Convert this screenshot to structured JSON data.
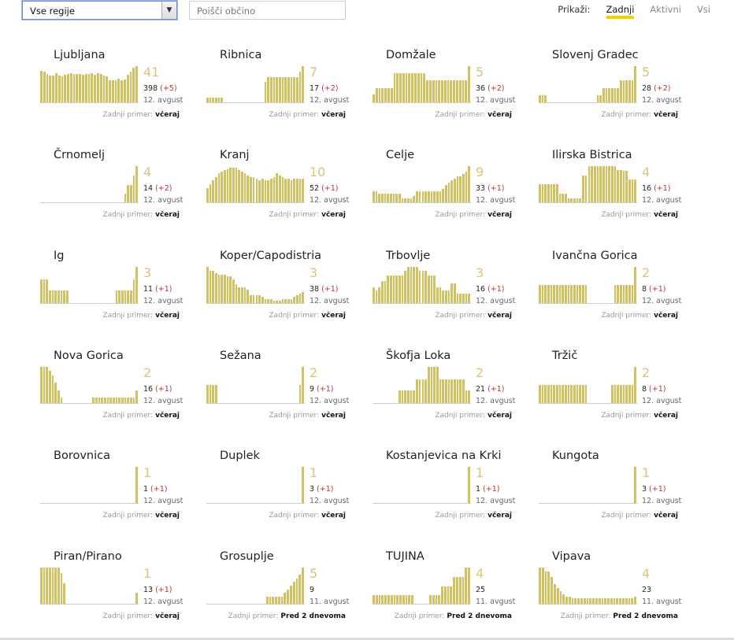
{
  "filters": {
    "region_value": "Vse regije",
    "search_placeholder": "Poišči občino",
    "show_label": "Prikaži:",
    "show_options": [
      "Zadnji",
      "Aktivni",
      "Vsi"
    ],
    "show_active": "Zadnji"
  },
  "last_label": "Zadnji primer:",
  "colors": {
    "bar": "#d3c15f",
    "accent": "#f5d000",
    "delta": "#b33333"
  },
  "municipalities": [
    {
      "name": "Ljubljana",
      "current": "41",
      "total": "398",
      "delta": "(+5)",
      "date": "12. avgust",
      "last_case": "včeraj",
      "bars": [
        0.86,
        0.84,
        0.78,
        0.74,
        0.74,
        0.8,
        0.74,
        0.72,
        0.76,
        0.78,
        0.8,
        0.78,
        0.78,
        0.78,
        0.76,
        0.78,
        0.78,
        0.8,
        0.76,
        0.8,
        0.78,
        0.74,
        0.72,
        0.6,
        0.6,
        0.62,
        0.66,
        0.62,
        0.64,
        0.76,
        0.84,
        0.96,
        1.0
      ]
    },
    {
      "name": "Ribnica",
      "current": "7",
      "total": "17",
      "delta": "(+2)",
      "date": "12. avgust",
      "last_case": "včeraj",
      "bars": [
        0.14,
        0.14,
        0.14,
        0.14,
        0.14,
        0.14,
        0,
        0,
        0,
        0,
        0,
        0,
        0,
        0,
        0,
        0,
        0,
        0,
        0,
        0,
        0.56,
        0.7,
        0.7,
        0.7,
        0.7,
        0.7,
        0.7,
        0.7,
        0.7,
        0.7,
        0.7,
        0.7,
        0.84,
        1.0
      ]
    },
    {
      "name": "Domžale",
      "current": "5",
      "total": "36",
      "delta": "(+2)",
      "date": "12. avgust",
      "last_case": "včeraj",
      "bars": [
        0.22,
        0.4,
        0.4,
        0.4,
        0.4,
        0.4,
        0.4,
        0.8,
        0.8,
        0.8,
        0.8,
        0.8,
        0.8,
        0.8,
        0.8,
        0.8,
        0.8,
        0.8,
        0.6,
        0.6,
        0.6,
        0.6,
        0.6,
        0.6,
        0.6,
        0.6,
        0.6,
        0.6,
        0.6,
        0.6,
        0.6,
        0.6,
        1.0
      ]
    },
    {
      "name": "Slovenj Gradec",
      "current": "5",
      "total": "28",
      "delta": "(+2)",
      "date": "12. avgust",
      "last_case": "včeraj",
      "bars": [
        0.2,
        0.2,
        0.2,
        0,
        0,
        0,
        0,
        0,
        0,
        0,
        0,
        0,
        0,
        0,
        0,
        0,
        0,
        0,
        0,
        0,
        0.2,
        0.2,
        0.4,
        0.4,
        0.4,
        0.4,
        0.4,
        0.4,
        0.6,
        0.6,
        0.6,
        0.6,
        0.6,
        1.0
      ]
    },
    {
      "name": "Črnomelj",
      "current": "4",
      "total": "14",
      "delta": "(+2)",
      "date": "12. avgust",
      "last_case": "včeraj",
      "bars": [
        0,
        0,
        0,
        0,
        0,
        0,
        0,
        0,
        0,
        0,
        0,
        0,
        0,
        0,
        0,
        0,
        0,
        0,
        0,
        0,
        0,
        0,
        0,
        0,
        0,
        0,
        0,
        0,
        0,
        0.24,
        0.48,
        0.48,
        0.74,
        1.0
      ]
    },
    {
      "name": "Kranj",
      "current": "10",
      "total": "52",
      "delta": "(+1)",
      "date": "12. avgust",
      "last_case": "včeraj",
      "bars": [
        0.4,
        0.5,
        0.6,
        0.7,
        0.8,
        0.85,
        0.9,
        0.92,
        0.95,
        0.95,
        0.95,
        0.9,
        0.85,
        0.8,
        0.75,
        0.7,
        0.7,
        0.65,
        0.6,
        0.65,
        0.6,
        0.6,
        0.65,
        0.7,
        0.8,
        0.75,
        0.7,
        0.65,
        0.65,
        0.6,
        0.65,
        0.65,
        0.65,
        0.65
      ]
    },
    {
      "name": "Celje",
      "current": "9",
      "total": "33",
      "delta": "(+1)",
      "date": "12. avgust",
      "last_case": "včeraj",
      "bars": [
        0.3,
        0.3,
        0.24,
        0.24,
        0.24,
        0.24,
        0.24,
        0.24,
        0.24,
        0.24,
        0.12,
        0.12,
        0.12,
        0.12,
        0.18,
        0.3,
        0.3,
        0.3,
        0.3,
        0.3,
        0.3,
        0.3,
        0.3,
        0.3,
        0.36,
        0.48,
        0.54,
        0.6,
        0.66,
        0.72,
        0.72,
        0.78,
        0.84,
        1.0
      ]
    },
    {
      "name": "Ilirska Bistrica",
      "current": "4",
      "total": "16",
      "delta": "(+1)",
      "date": "12. avgust",
      "last_case": "včeraj",
      "bars": [
        0.5,
        0.5,
        0.5,
        0.5,
        0.5,
        0.5,
        0.5,
        0.24,
        0.24,
        0.24,
        0.12,
        0.12,
        0.12,
        0.12,
        0.12,
        0.74,
        0.74,
        1.0,
        1.0,
        1.0,
        1.0,
        1.0,
        1.0,
        1.0,
        1.0,
        1.0,
        1.0,
        0.9,
        0.9,
        0.86,
        0.86,
        0.64,
        0.64,
        0.64
      ]
    },
    {
      "name": "Ig",
      "current": "3",
      "total": "11",
      "delta": "(+1)",
      "date": "12. avgust",
      "last_case": "včeraj",
      "bars": [
        0.66,
        0.66,
        0.66,
        0.34,
        0.34,
        0.34,
        0.34,
        0.34,
        0.34,
        0.34,
        0,
        0,
        0,
        0,
        0,
        0,
        0,
        0,
        0,
        0,
        0,
        0,
        0,
        0,
        0,
        0,
        0.34,
        0.34,
        0.34,
        0.34,
        0.34,
        0.34,
        0.66,
        1.0
      ]
    },
    {
      "name": "Koper/Capodistria",
      "current": "3",
      "total": "38",
      "delta": "(+1)",
      "date": "12. avgust",
      "last_case": "včeraj",
      "bars": [
        1.0,
        0.9,
        0.9,
        0.82,
        0.78,
        0.78,
        0.78,
        0.74,
        0.74,
        0.66,
        0.52,
        0.44,
        0.44,
        0.44,
        0.36,
        0.22,
        0.22,
        0.22,
        0.22,
        0.18,
        0.12,
        0.12,
        0.12,
        0.06,
        0.06,
        0.06,
        0.12,
        0.12,
        0.12,
        0.12,
        0.18,
        0.22,
        0.26,
        0.3
      ]
    },
    {
      "name": "Trbovlje",
      "current": "3",
      "total": "16",
      "delta": "(+1)",
      "date": "12. avgust",
      "last_case": "včeraj",
      "bars": [
        0.44,
        0.34,
        0.44,
        0.6,
        0.6,
        0.76,
        0.76,
        0.76,
        0.76,
        0.76,
        0.76,
        0.9,
        1.0,
        1.0,
        1.0,
        1.0,
        0.9,
        0.9,
        0.9,
        0.76,
        0.76,
        0.76,
        0.44,
        0.44,
        0.34,
        0.34,
        0.34,
        0.54,
        0.54,
        0.26,
        0.26,
        0.26,
        0.26,
        0.26
      ]
    },
    {
      "name": "Ivančna Gorica",
      "current": "2",
      "total": "8",
      "delta": "(+1)",
      "date": "12. avgust",
      "last_case": "včeraj",
      "bars": [
        0.5,
        0.5,
        0.5,
        0.5,
        0.5,
        0.5,
        0.5,
        0.5,
        0.5,
        0.5,
        0.5,
        0.5,
        0.5,
        0.5,
        0.5,
        0.5,
        0.5,
        0,
        0,
        0,
        0,
        0,
        0,
        0,
        0,
        0,
        0.5,
        0.5,
        0.5,
        0.5,
        0.5,
        0.5,
        0.5,
        1.0
      ]
    },
    {
      "name": "Nova Gorica",
      "current": "2",
      "total": "16",
      "delta": "(+1)",
      "date": "12. avgust",
      "last_case": "včeraj",
      "bars": [
        1.0,
        1.0,
        1.0,
        0.9,
        0.76,
        0.56,
        0.34,
        0.16,
        0,
        0,
        0,
        0,
        0,
        0,
        0,
        0,
        0,
        0,
        0.16,
        0.16,
        0.16,
        0.16,
        0.16,
        0.16,
        0.16,
        0.16,
        0.16,
        0.16,
        0.16,
        0.16,
        0.16,
        0.16,
        0.16,
        0.34
      ]
    },
    {
      "name": "Sežana",
      "current": "2",
      "total": "9",
      "delta": "(+1)",
      "date": "12. avgust",
      "last_case": "včeraj",
      "bars": [
        0.5,
        0.5,
        0.5,
        0.5,
        0,
        0,
        0,
        0,
        0,
        0,
        0,
        0,
        0,
        0,
        0,
        0,
        0,
        0,
        0,
        0,
        0,
        0,
        0,
        0,
        0,
        0,
        0,
        0,
        0,
        0,
        0,
        0,
        0.5,
        1.0
      ]
    },
    {
      "name": "Škofja Loka",
      "current": "2",
      "total": "21",
      "delta": "(+1)",
      "date": "12. avgust",
      "last_case": "včeraj",
      "bars": [
        0,
        0,
        0,
        0,
        0,
        0,
        0,
        0,
        0,
        0.34,
        0.34,
        0.34,
        0.34,
        0.34,
        0.34,
        0.66,
        0.66,
        0.66,
        0.66,
        1.0,
        1.0,
        1.0,
        1.0,
        0.66,
        0.66,
        0.66,
        0.66,
        0.66,
        0.66,
        0.66,
        0.66,
        0.66,
        0.34,
        0.34
      ]
    },
    {
      "name": "Tržič",
      "current": "2",
      "total": "8",
      "delta": "(+1)",
      "date": "12. avgust",
      "last_case": "včeraj",
      "bars": [
        0.5,
        0.5,
        0.5,
        0.5,
        0.5,
        0.5,
        0.5,
        0.5,
        0.5,
        0.5,
        0.5,
        0.5,
        0.5,
        0.5,
        0.5,
        0.5,
        0.5,
        0,
        0,
        0,
        0,
        0,
        0,
        0,
        0,
        0.5,
        0.5,
        0.5,
        0.5,
        0.5,
        0.5,
        0.5,
        0.5,
        1.0
      ]
    },
    {
      "name": "Borovnica",
      "current": "1",
      "total": "1",
      "delta": "(+1)",
      "date": "12. avgust",
      "last_case": "včeraj",
      "bars": [
        0,
        0,
        0,
        0,
        0,
        0,
        0,
        0,
        0,
        0,
        0,
        0,
        0,
        0,
        0,
        0,
        0,
        0,
        0,
        0,
        0,
        0,
        0,
        0,
        0,
        0,
        0,
        0,
        0,
        0,
        0,
        0,
        0,
        1.0
      ]
    },
    {
      "name": "Duplek",
      "current": "1",
      "total": "3",
      "delta": "(+1)",
      "date": "12. avgust",
      "last_case": "včeraj",
      "bars": [
        0,
        0,
        0,
        0,
        0,
        0,
        0,
        0,
        0,
        0,
        0,
        0,
        0,
        0,
        0,
        0,
        0,
        0,
        0,
        0,
        0,
        0,
        0,
        0,
        0,
        0,
        0,
        0,
        0,
        0,
        0,
        0,
        0,
        1.0
      ]
    },
    {
      "name": "Kostanjevica na Krki",
      "current": "1",
      "total": "1",
      "delta": "(+1)",
      "date": "12. avgust",
      "last_case": "včeraj",
      "bars": [
        0,
        0,
        0,
        0,
        0,
        0,
        0,
        0,
        0,
        0,
        0,
        0,
        0,
        0,
        0,
        0,
        0,
        0,
        0,
        0,
        0,
        0,
        0,
        0,
        0,
        0,
        0,
        0,
        0,
        0,
        0,
        0,
        0,
        1.0
      ]
    },
    {
      "name": "Kungota",
      "current": "1",
      "total": "3",
      "delta": "(+1)",
      "date": "12. avgust",
      "last_case": "včeraj",
      "bars": [
        0,
        0,
        0,
        0,
        0,
        0,
        0,
        0,
        0,
        0,
        0,
        0,
        0,
        0,
        0,
        0,
        0,
        0,
        0,
        0,
        0,
        0,
        0,
        0,
        0,
        0,
        0,
        0,
        0,
        0,
        0,
        0,
        0,
        1.0
      ]
    },
    {
      "name": "Piran/Pirano",
      "current": "1",
      "total": "13",
      "delta": "(+1)",
      "date": "12. avgust",
      "last_case": "včeraj",
      "bars": [
        1.0,
        1.0,
        1.0,
        1.0,
        1.0,
        1.0,
        1.0,
        0.84,
        0.56,
        0,
        0,
        0,
        0,
        0,
        0,
        0,
        0,
        0,
        0,
        0,
        0,
        0,
        0,
        0,
        0,
        0,
        0,
        0,
        0,
        0,
        0,
        0,
        0,
        0.3
      ]
    },
    {
      "name": "Grosuplje",
      "current": "5",
      "total": "9",
      "delta": "",
      "date": "11. avgust",
      "last_case": "Pred 2 dnevoma",
      "bars": [
        0,
        0,
        0,
        0,
        0,
        0,
        0,
        0,
        0,
        0,
        0,
        0,
        0,
        0,
        0,
        0,
        0,
        0,
        0,
        0,
        0.2,
        0.2,
        0.2,
        0.2,
        0.2,
        0.2,
        0.3,
        0.4,
        0.5,
        0.6,
        0.7,
        0.8,
        1.0
      ]
    },
    {
      "name": "TUJINA",
      "current": "4",
      "total": "25",
      "delta": "",
      "date": "11. avgust",
      "last_case": "Pred 2 dnevoma",
      "bars": [
        0.24,
        0.24,
        0.24,
        0.24,
        0.24,
        0.24,
        0.24,
        0.24,
        0.24,
        0.24,
        0.24,
        0.24,
        0.24,
        0.24,
        0,
        0,
        0,
        0,
        0,
        0.24,
        0.24,
        0.24,
        0.24,
        0.48,
        0.48,
        0.48,
        0.48,
        0.74,
        0.74,
        0.74,
        0.74,
        1.0,
        1.0
      ]
    },
    {
      "name": "Vipava",
      "current": "4",
      "total": "23",
      "delta": "",
      "date": "11. avgust",
      "last_case": "Pred 2 dnevoma",
      "bars": [
        1.0,
        1.0,
        0.9,
        0.9,
        0.74,
        0.54,
        0.44,
        0.34,
        0.26,
        0.2,
        0.2,
        0.16,
        0.16,
        0.16,
        0.16,
        0.16,
        0.16,
        0.16,
        0.16,
        0.16,
        0.16,
        0.16,
        0.16,
        0.16,
        0.16,
        0.16,
        0.16,
        0.16,
        0.16,
        0.16,
        0.16,
        0.16,
        0.2
      ]
    }
  ]
}
